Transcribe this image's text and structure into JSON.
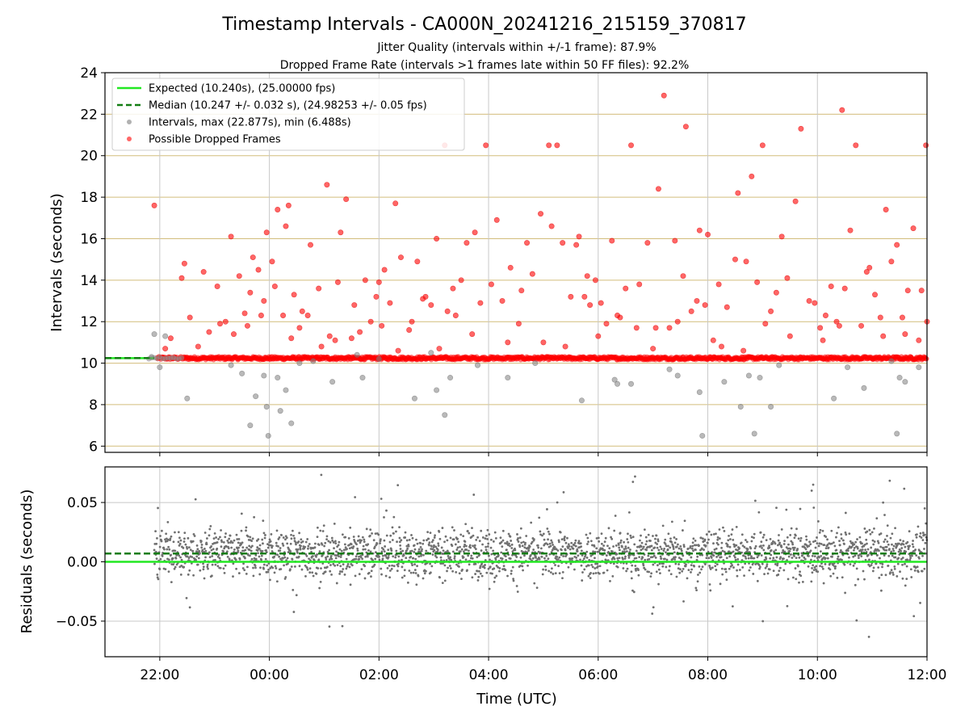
{
  "title": "Timestamp Intervals - CA000N_20241216_215159_370817",
  "subtitle_1": "Jitter Quality (intervals within +/-1 frame): 87.9%",
  "subtitle_2": "Dropped Frame Rate (intervals >1 frames late within 50 FF files): 92.2%",
  "chart_data": [
    {
      "type": "scatter",
      "panel": "top",
      "ylabel": "Intervals (seconds)",
      "xlabel": "",
      "x_unit": "hours UTC, continuous from 00:00 of the second day (negative = previous evening)",
      "xlim": [
        -3.0,
        12.0
      ],
      "ylim": [
        5.7,
        24
      ],
      "yticks": [
        6,
        8,
        10,
        12,
        14,
        16,
        18,
        20,
        22,
        24
      ],
      "ytick_labels": [
        "6",
        "8",
        "10",
        "12",
        "14",
        "16",
        "18",
        "20",
        "22",
        "24"
      ],
      "xticks": [
        -2,
        0,
        2,
        4,
        6,
        8,
        10,
        12
      ],
      "xtick_labels": [
        "22:00",
        "00:00",
        "02:00",
        "04:00",
        "06:00",
        "08:00",
        "10:00",
        "12:00"
      ],
      "grid": "on",
      "legend_position": "top-left",
      "legend": [
        "Expected (10.240s), (25.00000 fps)",
        "Median (10.247 +/- 0.032 s), (24.98253 +/- 0.05 fps)",
        "Intervals, max (22.877s), min (6.488s)",
        "Possible Dropped Frames"
      ],
      "expected_line": 10.24,
      "median_line": 10.247,
      "colors": {
        "expected": "#22e822",
        "median": "#137d13",
        "intervals": "#808080",
        "dropped": "#ff0000",
        "hgrid": "#d2bd7c",
        "vgrid": "#c8c8c8"
      },
      "series": [
        {
          "name": "Possible Dropped Frames",
          "points": [
            [
              -2.1,
              17.6
            ],
            [
              -1.8,
              11.2
            ],
            [
              -1.55,
              14.8
            ],
            [
              -1.45,
              12.2
            ],
            [
              -1.2,
              14.4
            ],
            [
              -1.1,
              11.5
            ],
            [
              -0.95,
              13.7
            ],
            [
              -0.8,
              12.0
            ],
            [
              -0.7,
              16.1
            ],
            [
              -0.55,
              14.2
            ],
            [
              -0.45,
              12.4
            ],
            [
              -0.35,
              13.4
            ],
            [
              -0.3,
              15.1
            ],
            [
              -0.2,
              14.5
            ],
            [
              -0.1,
              13.0
            ],
            [
              -0.05,
              16.3
            ],
            [
              0.1,
              13.7
            ],
            [
              0.15,
              17.4
            ],
            [
              0.25,
              12.3
            ],
            [
              0.3,
              16.6
            ],
            [
              0.35,
              17.6
            ],
            [
              0.45,
              13.3
            ],
            [
              0.55,
              11.7
            ],
            [
              0.7,
              12.3
            ],
            [
              0.75,
              15.7
            ],
            [
              0.9,
              13.6
            ],
            [
              1.05,
              18.6
            ],
            [
              1.1,
              11.3
            ],
            [
              1.25,
              13.9
            ],
            [
              1.3,
              16.3
            ],
            [
              1.4,
              17.9
            ],
            [
              1.55,
              12.8
            ],
            [
              1.65,
              11.5
            ],
            [
              1.75,
              14.0
            ],
            [
              1.95,
              13.2
            ],
            [
              2.0,
              13.9
            ],
            [
              2.05,
              11.8
            ],
            [
              2.2,
              12.9
            ],
            [
              2.3,
              17.7
            ],
            [
              2.4,
              15.1
            ],
            [
              2.55,
              11.6
            ],
            [
              2.7,
              14.9
            ],
            [
              2.85,
              13.2
            ],
            [
              2.95,
              12.8
            ],
            [
              3.05,
              16.0
            ],
            [
              3.2,
              20.5
            ],
            [
              3.25,
              12.5
            ],
            [
              3.35,
              13.6
            ],
            [
              3.5,
              14.0
            ],
            [
              3.6,
              15.8
            ],
            [
              3.75,
              16.3
            ],
            [
              3.85,
              12.9
            ],
            [
              3.95,
              20.5
            ],
            [
              4.15,
              16.9
            ],
            [
              4.25,
              13.0
            ],
            [
              4.4,
              14.6
            ],
            [
              4.55,
              11.9
            ],
            [
              4.7,
              15.8
            ],
            [
              4.8,
              14.3
            ],
            [
              4.95,
              17.2
            ],
            [
              5.1,
              20.5
            ],
            [
              5.15,
              16.6
            ],
            [
              5.25,
              20.5
            ],
            [
              5.35,
              15.8
            ],
            [
              5.5,
              13.2
            ],
            [
              5.6,
              15.7
            ],
            [
              5.65,
              16.1
            ],
            [
              5.75,
              13.2
            ],
            [
              5.85,
              12.8
            ],
            [
              5.95,
              14.0
            ],
            [
              6.05,
              12.9
            ],
            [
              6.15,
              11.9
            ],
            [
              6.25,
              15.9
            ],
            [
              6.35,
              12.3
            ],
            [
              6.5,
              13.6
            ],
            [
              6.6,
              20.5
            ],
            [
              6.75,
              13.8
            ],
            [
              6.9,
              15.8
            ],
            [
              7.05,
              11.7
            ],
            [
              7.1,
              18.4
            ],
            [
              7.2,
              22.9
            ],
            [
              7.3,
              11.7
            ],
            [
              7.4,
              15.9
            ],
            [
              7.55,
              14.2
            ],
            [
              7.6,
              21.4
            ],
            [
              7.7,
              12.5
            ],
            [
              7.85,
              16.4
            ],
            [
              7.95,
              12.8
            ],
            [
              8.0,
              16.2
            ],
            [
              8.1,
              11.1
            ],
            [
              8.2,
              13.8
            ],
            [
              8.35,
              12.7
            ],
            [
              8.5,
              15.0
            ],
            [
              8.55,
              18.2
            ],
            [
              8.7,
              14.9
            ],
            [
              8.8,
              19.0
            ],
            [
              8.9,
              13.9
            ],
            [
              9.0,
              20.5
            ],
            [
              9.15,
              12.5
            ],
            [
              9.25,
              13.4
            ],
            [
              9.35,
              16.1
            ],
            [
              9.45,
              14.1
            ],
            [
              9.6,
              17.8
            ],
            [
              9.7,
              21.3
            ],
            [
              9.85,
              13.0
            ],
            [
              9.95,
              12.9
            ],
            [
              10.05,
              11.7
            ],
            [
              10.15,
              12.3
            ],
            [
              10.25,
              13.7
            ],
            [
              10.35,
              12.0
            ],
            [
              10.45,
              22.2
            ],
            [
              10.5,
              13.6
            ],
            [
              10.6,
              16.4
            ],
            [
              10.7,
              20.5
            ],
            [
              10.8,
              11.8
            ],
            [
              10.95,
              14.6
            ],
            [
              11.05,
              13.3
            ],
            [
              11.15,
              12.2
            ],
            [
              11.25,
              17.4
            ],
            [
              11.35,
              14.9
            ],
            [
              11.45,
              15.7
            ],
            [
              11.55,
              12.2
            ],
            [
              11.65,
              13.5
            ],
            [
              11.75,
              16.5
            ],
            [
              11.9,
              13.5
            ],
            [
              11.98,
              20.5
            ],
            [
              12.0,
              12.0
            ],
            [
              11.85,
              11.1
            ],
            [
              11.6,
              11.4
            ],
            [
              11.2,
              11.3
            ],
            [
              10.9,
              14.4
            ],
            [
              10.4,
              11.8
            ],
            [
              10.1,
              11.1
            ],
            [
              9.5,
              11.3
            ],
            [
              9.05,
              11.9
            ],
            [
              8.65,
              10.6
            ],
            [
              8.25,
              10.8
            ],
            [
              7.8,
              13.0
            ],
            [
              7.45,
              12.0
            ],
            [
              7.0,
              10.7
            ],
            [
              6.7,
              11.7
            ],
            [
              6.4,
              12.2
            ],
            [
              6.0,
              11.3
            ],
            [
              5.8,
              14.2
            ],
            [
              5.4,
              10.8
            ],
            [
              5.0,
              11.0
            ],
            [
              4.6,
              13.5
            ],
            [
              4.35,
              11.0
            ],
            [
              4.05,
              13.8
            ],
            [
              3.7,
              11.4
            ],
            [
              3.4,
              12.3
            ],
            [
              3.1,
              10.7
            ],
            [
              2.8,
              13.1
            ],
            [
              2.6,
              12.0
            ],
            [
              2.35,
              10.6
            ],
            [
              2.1,
              14.5
            ],
            [
              1.85,
              12.0
            ],
            [
              1.5,
              11.2
            ],
            [
              1.2,
              11.1
            ],
            [
              0.95,
              10.8
            ],
            [
              0.6,
              12.5
            ],
            [
              0.4,
              11.2
            ],
            [
              0.05,
              14.9
            ],
            [
              -0.15,
              12.3
            ],
            [
              -0.4,
              11.8
            ],
            [
              -0.65,
              11.4
            ],
            [
              -0.9,
              11.9
            ],
            [
              -1.3,
              10.8
            ],
            [
              -1.6,
              14.1
            ],
            [
              -1.9,
              10.7
            ]
          ]
        },
        {
          "name": "Intervals, max (22.877s), min (6.488s)",
          "points": [
            [
              -2.15,
              10.3
            ],
            [
              -2.1,
              11.4
            ],
            [
              -2.0,
              9.8
            ],
            [
              -1.9,
              11.3
            ],
            [
              -1.5,
              8.3
            ],
            [
              -0.7,
              9.9
            ],
            [
              -0.5,
              9.5
            ],
            [
              -0.35,
              7.0
            ],
            [
              -0.25,
              8.4
            ],
            [
              -0.1,
              9.4
            ],
            [
              -0.05,
              7.9
            ],
            [
              -0.02,
              6.5
            ],
            [
              0.15,
              9.3
            ],
            [
              0.2,
              7.7
            ],
            [
              0.3,
              8.7
            ],
            [
              0.4,
              7.1
            ],
            [
              0.55,
              10.0
            ],
            [
              0.8,
              10.1
            ],
            [
              1.15,
              9.1
            ],
            [
              1.6,
              10.4
            ],
            [
              1.7,
              9.3
            ],
            [
              2.0,
              10.2
            ],
            [
              2.65,
              8.3
            ],
            [
              2.95,
              10.5
            ],
            [
              3.05,
              8.7
            ],
            [
              3.2,
              7.5
            ],
            [
              3.3,
              9.3
            ],
            [
              3.8,
              9.9
            ],
            [
              4.35,
              9.3
            ],
            [
              4.85,
              10.0
            ],
            [
              5.7,
              8.2
            ],
            [
              6.3,
              9.2
            ],
            [
              6.35,
              9.0
            ],
            [
              6.6,
              9.0
            ],
            [
              7.3,
              9.7
            ],
            [
              7.45,
              9.4
            ],
            [
              7.85,
              8.6
            ],
            [
              7.9,
              6.5
            ],
            [
              8.3,
              9.1
            ],
            [
              8.6,
              7.9
            ],
            [
              8.75,
              9.4
            ],
            [
              8.85,
              6.6
            ],
            [
              8.95,
              9.3
            ],
            [
              9.15,
              7.9
            ],
            [
              9.3,
              9.9
            ],
            [
              10.3,
              8.3
            ],
            [
              10.55,
              9.8
            ],
            [
              10.85,
              8.8
            ],
            [
              11.35,
              10.1
            ],
            [
              11.45,
              6.6
            ],
            [
              11.5,
              9.3
            ],
            [
              11.6,
              9.1
            ],
            [
              11.85,
              9.8
            ]
          ]
        }
      ]
    },
    {
      "type": "scatter",
      "panel": "bottom",
      "ylabel": "Residuals (seconds)",
      "xlabel": "Time (UTC)",
      "xlim": [
        -3.0,
        12.0
      ],
      "ylim": [
        -0.08,
        0.08
      ],
      "yticks": [
        -0.05,
        0.0,
        0.05
      ],
      "ytick_labels": [
        "−0.05",
        "0.00",
        "0.05"
      ],
      "xticks": [
        -2,
        0,
        2,
        4,
        6,
        8,
        10,
        12
      ],
      "xtick_labels": [
        "22:00",
        "00:00",
        "02:00",
        "04:00",
        "06:00",
        "08:00",
        "10:00",
        "12:00"
      ],
      "grid": "on",
      "expected_line": 0.0,
      "median_line": 0.007,
      "residuals_band": {
        "x_range": [
          -2.1,
          12.0
        ],
        "center": 0.007,
        "spread": 0.03
      },
      "colors": {
        "points": "#707070",
        "expected": "#22e822",
        "median": "#137d13"
      }
    }
  ]
}
